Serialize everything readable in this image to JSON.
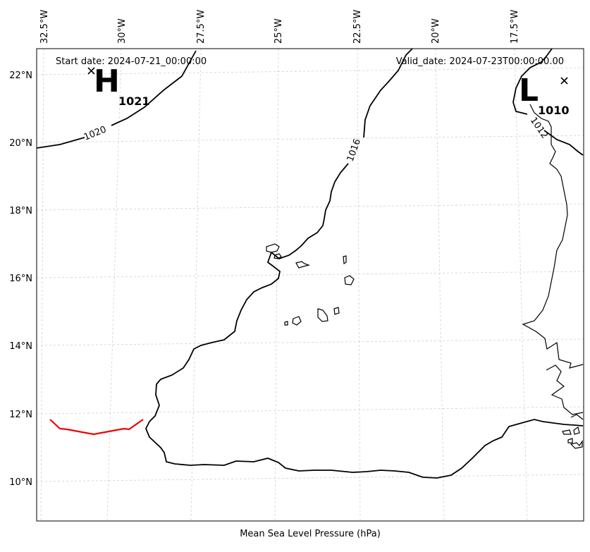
{
  "header": {
    "start_date": "Start date: 2024-07-21_00:00:00",
    "valid_date": "Valid_date: 2024-07-23T00:00:00.00"
  },
  "caption": "Mean Sea Level Pressure (hPa)",
  "lon_ticks": [
    "32.5°W",
    "30°W",
    "27.5°W",
    "25°W",
    "22.5°W",
    "20°W",
    "17.5°W"
  ],
  "lat_ticks": [
    "22°N",
    "20°N",
    "18°N",
    "16°N",
    "14°N",
    "12°N",
    "10°N"
  ],
  "isobars": {
    "label_1020": "1020",
    "label_1016": "1016",
    "label_1012": "1012"
  },
  "pressure_centers": {
    "high": {
      "letter": "H",
      "value": "1021"
    },
    "low": {
      "letter": "L",
      "value": "1010"
    }
  },
  "colors": {
    "isobar": "#000000",
    "coast": "#000000",
    "grid": "#cfcfcf",
    "track": "#ee0000"
  }
}
